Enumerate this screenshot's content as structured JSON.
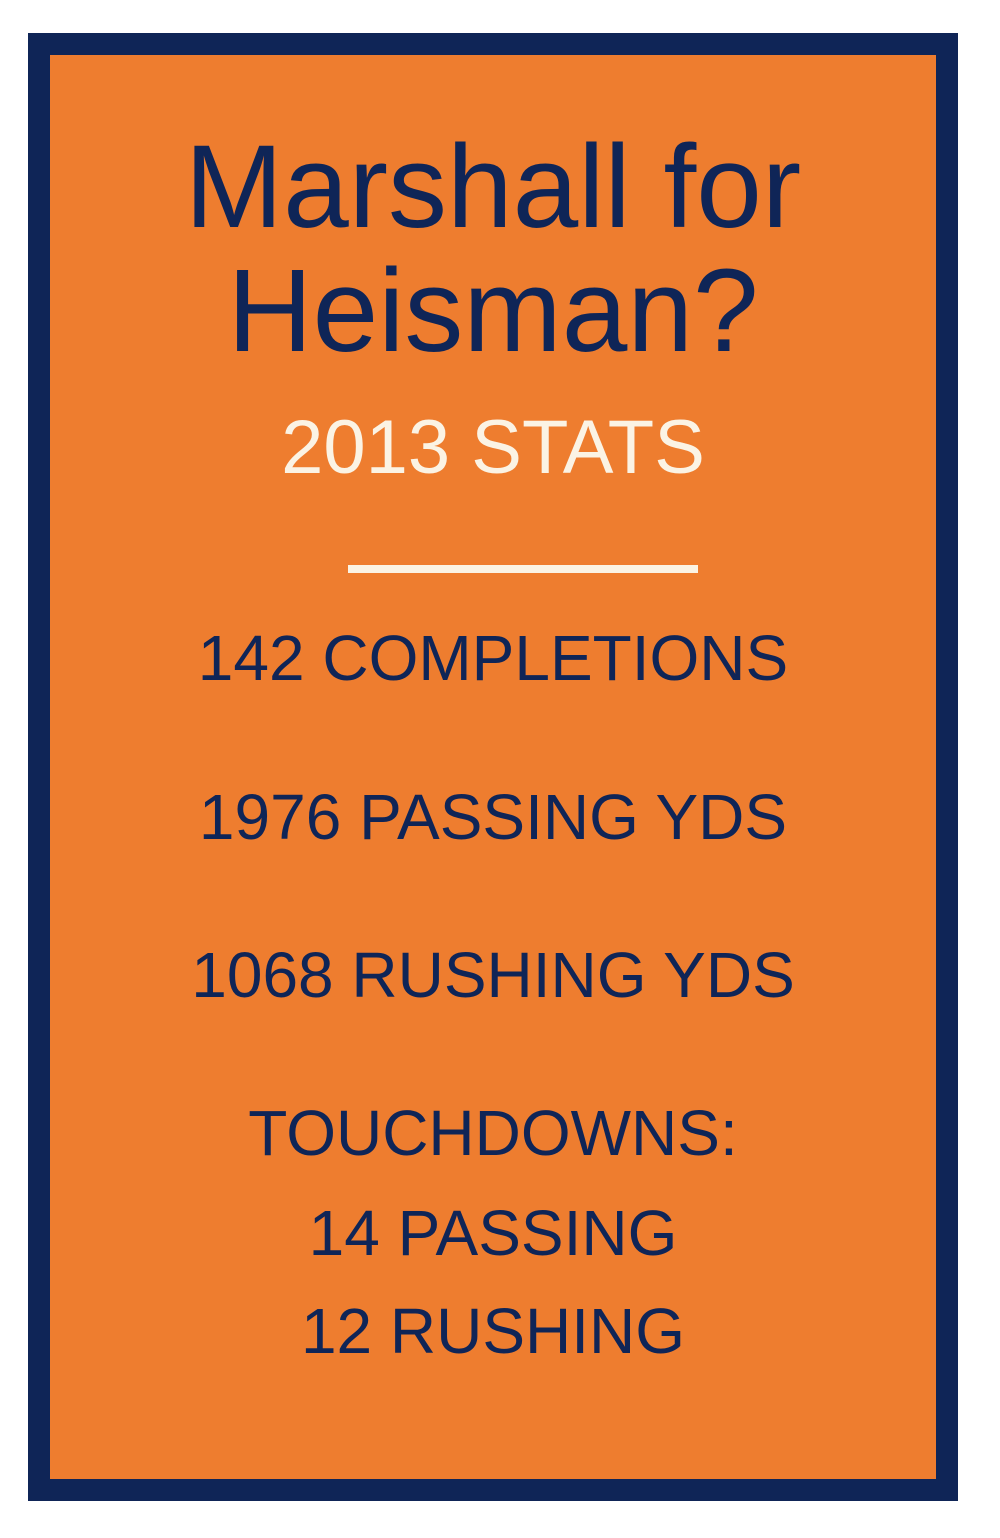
{
  "card": {
    "title_line1": "Marshall for",
    "title_line2": "Heisman?",
    "subtitle": "2013 STATS",
    "stats": [
      "142 COMPLETIONS",
      "1976 PASSING YDS",
      "1068 RUSHING YDS"
    ],
    "touchdowns": {
      "heading": "TOUCHDOWNS:",
      "lines": [
        "14 PASSING",
        "12 RUSHING"
      ]
    }
  },
  "colors": {
    "border": "#0f2557",
    "background": "#ee7d2f",
    "text_primary": "#0f2557",
    "text_accent": "#fbf3e4"
  }
}
